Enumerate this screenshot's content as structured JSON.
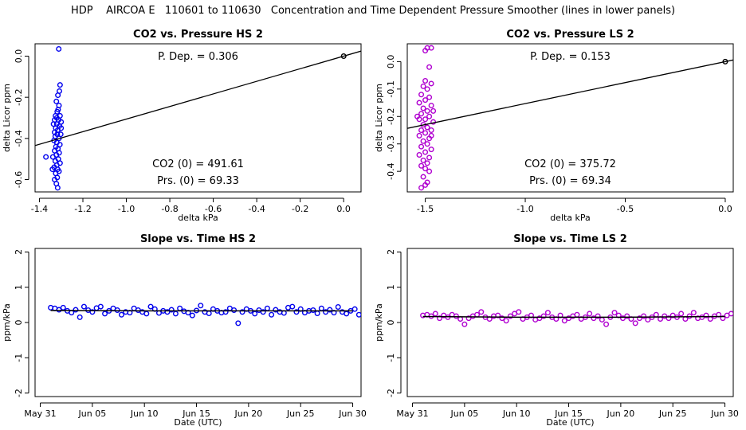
{
  "page": {
    "title": "HDP    AIRCOA E   110601 to 110630   Concentration and Time Dependent Pressure Smoother (lines in lower panels)"
  },
  "colors": {
    "hs": "#0000ee",
    "ls": "#b000d0",
    "line": "#000000"
  },
  "chart_data": [
    {
      "id": "hs_scatter",
      "type": "scatter",
      "title": "CO2 vs. Pressure HS 2",
      "xlabel": "delta kPa",
      "ylabel": "delta Licor ppm",
      "xlim": [
        -1.42,
        0.08
      ],
      "ylim": [
        -0.66,
        0.06
      ],
      "xticks": [
        -1.4,
        -1.2,
        -1.0,
        -0.8,
        -0.6,
        -0.4,
        -0.2,
        0.0
      ],
      "xtick_labels": [
        "-1.4",
        "-1.2",
        "-1.0",
        "-0.8",
        "-0.6",
        "-0.4",
        "-0.2",
        "0.0"
      ],
      "yticks": [
        -0.6,
        -0.4,
        -0.2,
        0.0
      ],
      "ytick_labels": [
        "-0.6",
        "-0.4",
        "-0.2",
        "0.0"
      ],
      "fit_line": {
        "slope": 0.306,
        "intercept": 0.0
      },
      "anchor_point": [
        0.0,
        0.0
      ],
      "annotations": {
        "p_dep": "P. Dep. =  0.306",
        "co2_0": "CO2 (0) =  491.61",
        "prs_0": "Prs. (0) =  69.33"
      },
      "points": [
        [
          -1.311,
          0.035
        ],
        [
          -1.305,
          -0.14
        ],
        [
          -1.308,
          -0.17
        ],
        [
          -1.315,
          -0.19
        ],
        [
          -1.322,
          -0.22
        ],
        [
          -1.31,
          -0.24
        ],
        [
          -1.318,
          -0.27
        ],
        [
          -1.326,
          -0.29
        ],
        [
          -1.305,
          -0.29
        ],
        [
          -1.33,
          -0.31
        ],
        [
          -1.312,
          -0.31
        ],
        [
          -1.3,
          -0.32
        ],
        [
          -1.32,
          -0.33
        ],
        [
          -1.335,
          -0.33
        ],
        [
          -1.308,
          -0.34
        ],
        [
          -1.325,
          -0.35
        ],
        [
          -1.316,
          -0.36
        ],
        [
          -1.33,
          -0.37
        ],
        [
          -1.302,
          -0.38
        ],
        [
          -1.318,
          -0.38
        ],
        [
          -1.327,
          -0.39
        ],
        [
          -1.31,
          -0.4
        ],
        [
          -1.333,
          -0.41
        ],
        [
          -1.32,
          -0.42
        ],
        [
          -1.306,
          -0.43
        ],
        [
          -1.324,
          -0.44
        ],
        [
          -1.315,
          -0.45
        ],
        [
          -1.33,
          -0.46
        ],
        [
          -1.309,
          -0.47
        ],
        [
          -1.322,
          -0.48
        ],
        [
          -1.338,
          -0.49
        ],
        [
          -1.313,
          -0.5
        ],
        [
          -1.327,
          -0.51
        ],
        [
          -1.305,
          -0.52
        ],
        [
          -1.32,
          -0.53
        ],
        [
          -1.332,
          -0.54
        ],
        [
          -1.316,
          -0.55
        ],
        [
          -1.34,
          -0.55
        ],
        [
          -1.31,
          -0.56
        ],
        [
          -1.325,
          -0.57
        ],
        [
          -1.318,
          -0.59
        ],
        [
          -1.33,
          -0.6
        ],
        [
          -1.322,
          -0.62
        ],
        [
          -1.316,
          -0.64
        ],
        [
          -1.37,
          -0.49
        ],
        [
          -1.3,
          -0.35
        ],
        [
          -1.32,
          -0.3
        ],
        [
          -1.314,
          -0.26
        ]
      ]
    },
    {
      "id": "ls_scatter",
      "type": "scatter",
      "title": "CO2 vs. Pressure LS 2",
      "xlabel": "delta kPa",
      "ylabel": "delta Licor ppm",
      "xlim": [
        -1.59,
        0.04
      ],
      "ylim": [
        -0.475,
        0.065
      ],
      "xticks": [
        -1.5,
        -1.0,
        -0.5,
        0.0
      ],
      "xtick_labels": [
        "-1.5",
        "-1.0",
        "-0.5",
        "0.0"
      ],
      "yticks": [
        -0.4,
        -0.3,
        -0.2,
        -0.1,
        0.0
      ],
      "ytick_labels": [
        "-0.4",
        "-0.3",
        "-0.2",
        "-0.1",
        "0.0"
      ],
      "fit_line": {
        "slope": 0.153,
        "intercept": 0.0
      },
      "anchor_point": [
        0.0,
        0.0
      ],
      "annotations": {
        "p_dep": "P. Dep. =  0.153",
        "co2_0": "CO2 (0) =  375.72",
        "prs_0": "Prs. (0) =  69.34"
      },
      "points": [
        [
          -1.49,
          0.05
        ],
        [
          -1.47,
          0.05
        ],
        [
          -1.5,
          0.04
        ],
        [
          -1.48,
          -0.02
        ],
        [
          -1.5,
          -0.07
        ],
        [
          -1.47,
          -0.08
        ],
        [
          -1.51,
          -0.09
        ],
        [
          -1.49,
          -0.1
        ],
        [
          -1.52,
          -0.12
        ],
        [
          -1.48,
          -0.13
        ],
        [
          -1.5,
          -0.14
        ],
        [
          -1.53,
          -0.15
        ],
        [
          -1.47,
          -0.16
        ],
        [
          -1.51,
          -0.17
        ],
        [
          -1.49,
          -0.18
        ],
        [
          -1.52,
          -0.19
        ],
        [
          -1.48,
          -0.2
        ],
        [
          -1.5,
          -0.21
        ],
        [
          -1.53,
          -0.21
        ],
        [
          -1.46,
          -0.22
        ],
        [
          -1.51,
          -0.23
        ],
        [
          -1.49,
          -0.24
        ],
        [
          -1.52,
          -0.25
        ],
        [
          -1.47,
          -0.25
        ],
        [
          -1.5,
          -0.26
        ],
        [
          -1.53,
          -0.27
        ],
        [
          -1.48,
          -0.28
        ],
        [
          -1.51,
          -0.29
        ],
        [
          -1.49,
          -0.3
        ],
        [
          -1.52,
          -0.31
        ],
        [
          -1.47,
          -0.32
        ],
        [
          -1.5,
          -0.33
        ],
        [
          -1.53,
          -0.34
        ],
        [
          -1.48,
          -0.35
        ],
        [
          -1.51,
          -0.36
        ],
        [
          -1.49,
          -0.37
        ],
        [
          -1.52,
          -0.38
        ],
        [
          -1.5,
          -0.39
        ],
        [
          -1.48,
          -0.4
        ],
        [
          -1.51,
          -0.42
        ],
        [
          -1.49,
          -0.44
        ],
        [
          -1.5,
          -0.45
        ],
        [
          -1.52,
          -0.46
        ],
        [
          -1.54,
          -0.2
        ],
        [
          -1.46,
          -0.18
        ],
        [
          -1.47,
          -0.27
        ]
      ]
    },
    {
      "id": "hs_time",
      "type": "scatter",
      "title": "Slope vs. Time HS 2",
      "xlabel": "Date (UTC)",
      "ylabel": "ppm/kPa",
      "xlim": [
        -0.5,
        30.8
      ],
      "ylim": [
        -2.1,
        2.1
      ],
      "xticks": [
        0,
        5,
        10,
        15,
        20,
        25,
        30
      ],
      "xtick_labels": [
        "May 31",
        "Jun 05",
        "Jun 10",
        "Jun 15",
        "Jun 20",
        "Jun 25",
        "Jun 30"
      ],
      "yticks": [
        -2,
        -1,
        0,
        1,
        2
      ],
      "ytick_labels": [
        "-2",
        "-1",
        "0",
        "1",
        "2"
      ],
      "smoother": [
        [
          1.0,
          0.34
        ],
        [
          10,
          0.33
        ],
        [
          20,
          0.33
        ],
        [
          30.0,
          0.33
        ]
      ],
      "points": [
        [
          1.0,
          0.42
        ],
        [
          1.4,
          0.4
        ],
        [
          1.8,
          0.36
        ],
        [
          2.2,
          0.42
        ],
        [
          2.6,
          0.33
        ],
        [
          3.0,
          0.28
        ],
        [
          3.4,
          0.36
        ],
        [
          3.8,
          0.15
        ],
        [
          4.2,
          0.45
        ],
        [
          4.6,
          0.35
        ],
        [
          5.0,
          0.3
        ],
        [
          5.4,
          0.41
        ],
        [
          5.8,
          0.45
        ],
        [
          6.2,
          0.25
        ],
        [
          6.6,
          0.33
        ],
        [
          7.0,
          0.4
        ],
        [
          7.4,
          0.35
        ],
        [
          7.8,
          0.22
        ],
        [
          8.2,
          0.3
        ],
        [
          8.6,
          0.28
        ],
        [
          9.0,
          0.4
        ],
        [
          9.4,
          0.35
        ],
        [
          9.8,
          0.3
        ],
        [
          10.2,
          0.25
        ],
        [
          10.6,
          0.45
        ],
        [
          11.0,
          0.38
        ],
        [
          11.4,
          0.27
        ],
        [
          11.8,
          0.33
        ],
        [
          12.2,
          0.3
        ],
        [
          12.6,
          0.36
        ],
        [
          13.0,
          0.25
        ],
        [
          13.4,
          0.4
        ],
        [
          13.8,
          0.32
        ],
        [
          14.2,
          0.28
        ],
        [
          14.6,
          0.2
        ],
        [
          15.0,
          0.34
        ],
        [
          15.4,
          0.48
        ],
        [
          15.8,
          0.3
        ],
        [
          16.2,
          0.26
        ],
        [
          16.6,
          0.38
        ],
        [
          17.0,
          0.33
        ],
        [
          17.4,
          0.28
        ],
        [
          17.8,
          0.3
        ],
        [
          18.2,
          0.4
        ],
        [
          18.6,
          0.35
        ],
        [
          19.0,
          -0.02
        ],
        [
          19.4,
          0.3
        ],
        [
          19.8,
          0.38
        ],
        [
          20.2,
          0.33
        ],
        [
          20.6,
          0.25
        ],
        [
          21.0,
          0.35
        ],
        [
          21.4,
          0.3
        ],
        [
          21.8,
          0.4
        ],
        [
          22.2,
          0.22
        ],
        [
          22.6,
          0.36
        ],
        [
          23.0,
          0.3
        ],
        [
          23.4,
          0.27
        ],
        [
          23.8,
          0.42
        ],
        [
          24.2,
          0.45
        ],
        [
          24.6,
          0.3
        ],
        [
          25.0,
          0.38
        ],
        [
          25.4,
          0.28
        ],
        [
          25.8,
          0.33
        ],
        [
          26.2,
          0.35
        ],
        [
          26.6,
          0.26
        ],
        [
          27.0,
          0.4
        ],
        [
          27.4,
          0.3
        ],
        [
          27.8,
          0.36
        ],
        [
          28.2,
          0.28
        ],
        [
          28.6,
          0.44
        ],
        [
          29.0,
          0.3
        ],
        [
          29.4,
          0.25
        ],
        [
          29.8,
          0.33
        ],
        [
          30.2,
          0.38
        ],
        [
          30.6,
          0.22
        ]
      ]
    },
    {
      "id": "ls_time",
      "type": "scatter",
      "title": "Slope vs. Time LS 2",
      "xlabel": "Date (UTC)",
      "ylabel": "ppm/kPa",
      "xlim": [
        -0.5,
        30.8
      ],
      "ylim": [
        -2.1,
        2.1
      ],
      "xticks": [
        0,
        5,
        10,
        15,
        20,
        25,
        30
      ],
      "xtick_labels": [
        "May 31",
        "Jun 05",
        "Jun 10",
        "Jun 15",
        "Jun 20",
        "Jun 25",
        "Jun 30"
      ],
      "yticks": [
        -2,
        -1,
        0,
        1,
        2
      ],
      "ytick_labels": [
        "-2",
        "-1",
        "0",
        "1",
        "2"
      ],
      "smoother": [
        [
          1.0,
          0.17
        ],
        [
          10,
          0.15
        ],
        [
          20,
          0.15
        ],
        [
          30.0,
          0.17
        ]
      ],
      "points": [
        [
          1.0,
          0.2
        ],
        [
          1.4,
          0.22
        ],
        [
          1.8,
          0.18
        ],
        [
          2.2,
          0.25
        ],
        [
          2.6,
          0.12
        ],
        [
          3.0,
          0.2
        ],
        [
          3.4,
          0.15
        ],
        [
          3.8,
          0.22
        ],
        [
          4.2,
          0.18
        ],
        [
          4.6,
          0.1
        ],
        [
          5.0,
          -0.05
        ],
        [
          5.4,
          0.12
        ],
        [
          5.8,
          0.18
        ],
        [
          6.2,
          0.22
        ],
        [
          6.6,
          0.3
        ],
        [
          7.0,
          0.15
        ],
        [
          7.4,
          0.1
        ],
        [
          7.8,
          0.18
        ],
        [
          8.2,
          0.2
        ],
        [
          8.6,
          0.12
        ],
        [
          9.0,
          0.05
        ],
        [
          9.4,
          0.18
        ],
        [
          9.8,
          0.25
        ],
        [
          10.2,
          0.3
        ],
        [
          10.6,
          0.1
        ],
        [
          11.0,
          0.15
        ],
        [
          11.4,
          0.2
        ],
        [
          11.8,
          0.08
        ],
        [
          12.2,
          0.12
        ],
        [
          12.6,
          0.18
        ],
        [
          13.0,
          0.28
        ],
        [
          13.4,
          0.15
        ],
        [
          13.8,
          0.1
        ],
        [
          14.2,
          0.2
        ],
        [
          14.6,
          0.05
        ],
        [
          15.0,
          0.12
        ],
        [
          15.4,
          0.18
        ],
        [
          15.8,
          0.22
        ],
        [
          16.2,
          0.1
        ],
        [
          16.6,
          0.15
        ],
        [
          17.0,
          0.25
        ],
        [
          17.4,
          0.12
        ],
        [
          17.8,
          0.18
        ],
        [
          18.2,
          0.08
        ],
        [
          18.6,
          -0.05
        ],
        [
          19.0,
          0.15
        ],
        [
          19.4,
          0.28
        ],
        [
          19.8,
          0.2
        ],
        [
          20.2,
          0.12
        ],
        [
          20.6,
          0.18
        ],
        [
          21.0,
          0.1
        ],
        [
          21.4,
          -0.02
        ],
        [
          21.8,
          0.12
        ],
        [
          22.2,
          0.18
        ],
        [
          22.6,
          0.08
        ],
        [
          23.0,
          0.15
        ],
        [
          23.4,
          0.22
        ],
        [
          23.8,
          0.1
        ],
        [
          24.2,
          0.18
        ],
        [
          24.6,
          0.12
        ],
        [
          25.0,
          0.2
        ],
        [
          25.4,
          0.15
        ],
        [
          25.8,
          0.25
        ],
        [
          26.2,
          0.1
        ],
        [
          26.6,
          0.18
        ],
        [
          27.0,
          0.28
        ],
        [
          27.4,
          0.12
        ],
        [
          27.8,
          0.15
        ],
        [
          28.2,
          0.2
        ],
        [
          28.6,
          0.1
        ],
        [
          29.0,
          0.18
        ],
        [
          29.4,
          0.22
        ],
        [
          29.8,
          0.12
        ],
        [
          30.2,
          0.2
        ],
        [
          30.6,
          0.25
        ]
      ]
    }
  ]
}
